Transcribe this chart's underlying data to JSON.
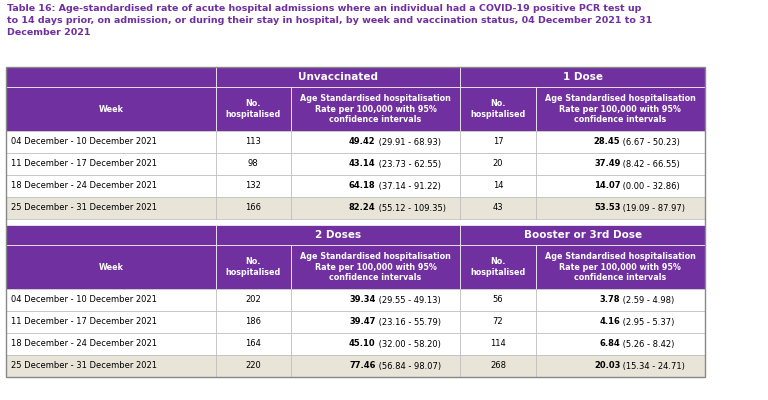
{
  "title": "Table 16: Age-standardised rate of acute hospital admissions where an individual had a COVID-19 positive PCR test up\nto 14 days prior, on admission, or during their stay in hospital, by week and vaccination status, 04 December 2021 to 31\nDecember 2021",
  "title_color": "#7030a0",
  "purple": "#7030a0",
  "white": "#ffffff",
  "tan": "#e8e4d8",
  "section1_headers": [
    "Unvaccinated",
    "1 Dose"
  ],
  "section2_headers": [
    "2 Doses",
    "Booster or 3rd Dose"
  ],
  "col_headers": [
    "Week",
    "No.\nhospitalised",
    "Age Standardised hospitalisation\nRate per 100,000 with 95%\nconfidence intervals",
    "No.\nhospitalised",
    "Age Standardised hospitalisation\nRate per 100,000 with 95%\nconfidence intervals"
  ],
  "rows1": [
    [
      "04 December - 10 December 2021",
      "113",
      "49.42",
      " (29.91 - 68.93)",
      "17",
      "28.45",
      " (6.67 - 50.23)"
    ],
    [
      "11 December - 17 December 2021",
      "98",
      "43.14",
      " (23.73 - 62.55)",
      "20",
      "37.49",
      " (8.42 - 66.55)"
    ],
    [
      "18 December - 24 December 2021",
      "132",
      "64.18",
      " (37.14 - 91.22)",
      "14",
      "14.07",
      " (0.00 - 32.86)"
    ],
    [
      "25 December - 31 December 2021",
      "166",
      "82.24",
      " (55.12 - 109.35)",
      "43",
      "53.53",
      " (19.09 - 87.97)"
    ]
  ],
  "rows2": [
    [
      "04 December - 10 December 2021",
      "202",
      "39.34",
      " (29.55 - 49.13)",
      "56",
      "3.78",
      " (2.59 - 4.98)"
    ],
    [
      "11 December - 17 December 2021",
      "186",
      "39.47",
      " (23.16 - 55.79)",
      "72",
      "4.16",
      " (2.95 - 5.37)"
    ],
    [
      "18 December - 24 December 2021",
      "164",
      "45.10",
      " (32.00 - 58.20)",
      "114",
      "6.84",
      " (5.26 - 8.42)"
    ],
    [
      "25 December - 31 December 2021",
      "220",
      "77.46",
      " (56.84 - 98.07)",
      "268",
      "20.03",
      " (15.34 - 24.71)"
    ]
  ]
}
